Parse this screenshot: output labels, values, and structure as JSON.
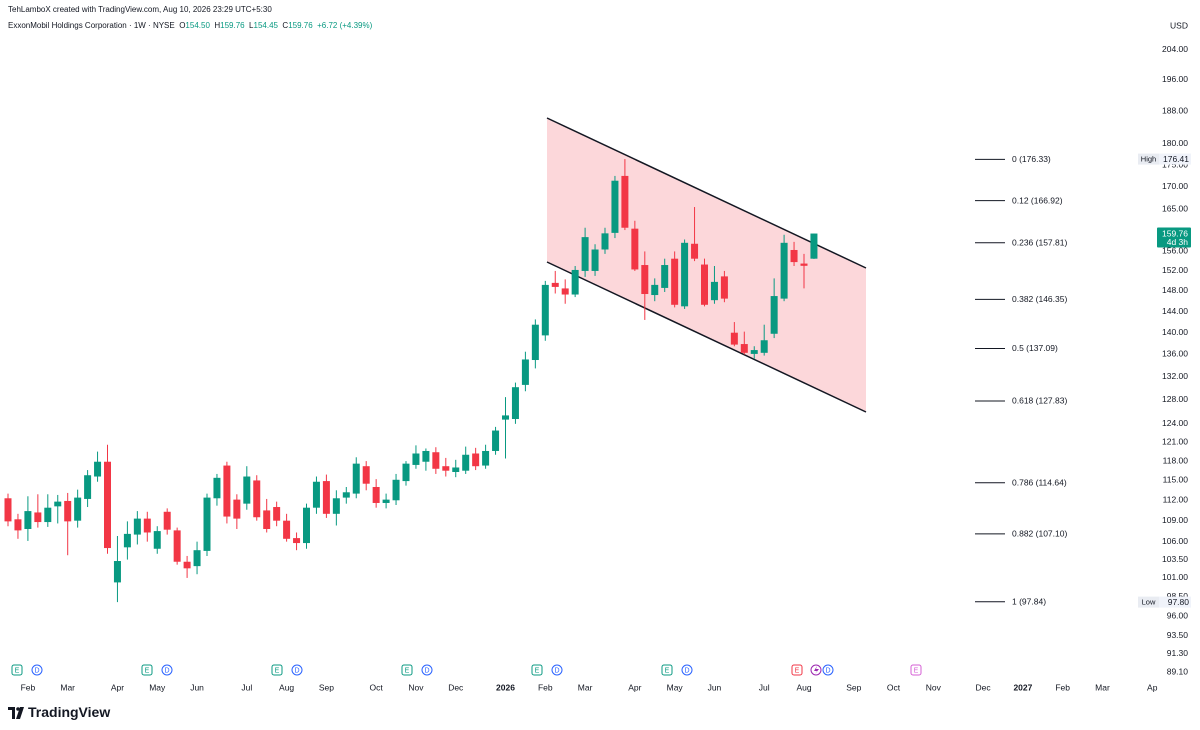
{
  "chart_data": {
    "type": "candlestick",
    "attribution": "TehLamboX created with TradingView.com, Aug 10, 2026 23:29 UTC+5:30",
    "legend": {
      "symbol": "ExxonMobil Holdings Corporation · 1W · NYSE",
      "fields": [
        [
          "O",
          "154.50"
        ],
        [
          "H",
          "159.76"
        ],
        [
          "L",
          "154.45"
        ],
        [
          "C",
          "159.76"
        ]
      ],
      "change": "+6.72 (+4.39%)"
    },
    "currency": "USD",
    "brand": "TradingView",
    "up_color": "#089981",
    "down_color": "#f23645",
    "log_scale": true,
    "grid": false,
    "categories": [
      null,
      null,
      "Feb",
      null,
      null,
      null,
      "Mar",
      null,
      null,
      null,
      null,
      "Apr",
      null,
      null,
      null,
      "May",
      null,
      null,
      null,
      "Jun",
      null,
      null,
      null,
      null,
      "Jul",
      null,
      null,
      null,
      "Aug",
      null,
      null,
      null,
      "Sep",
      null,
      null,
      null,
      null,
      "Oct",
      null,
      null,
      null,
      "Nov",
      null,
      null,
      null,
      "Dec",
      null,
      null,
      null,
      null,
      "2026",
      null,
      null,
      null,
      "Feb",
      null,
      null,
      null,
      "Mar",
      null,
      null,
      null,
      null,
      "Apr",
      null,
      null,
      null,
      "May",
      null,
      null,
      null,
      "Jun",
      null,
      null,
      null,
      null,
      "Jul",
      null,
      null,
      null,
      "Aug",
      null,
      null,
      null,
      null,
      "Sep",
      null,
      null,
      null,
      "Oct",
      null,
      null,
      null,
      "Nov",
      null,
      null,
      null,
      null,
      "Dec",
      null,
      null,
      null,
      "2027",
      null,
      null,
      null,
      "Feb",
      null,
      null,
      null,
      "Mar",
      null,
      null,
      null,
      null,
      "Ap"
    ],
    "open": [
      112.3,
      109.2,
      107.8,
      110.2,
      108.8,
      111.1,
      111.9,
      109.0,
      112.2,
      115.6,
      117.9,
      100.4,
      105.2,
      107.0,
      109.3,
      105.0,
      110.3,
      107.6,
      103.2,
      102.6,
      104.7,
      112.3,
      117.3,
      112.1,
      111.5,
      115.0,
      110.5,
      111.0,
      109.0,
      106.5,
      105.8,
      110.9,
      114.9,
      110.0,
      112.4,
      113.0,
      117.2,
      114.0,
      111.6,
      112.0,
      114.9,
      117.4,
      117.9,
      119.4,
      117.2,
      116.3,
      116.5,
      119.2,
      117.3,
      119.6,
      124.7,
      124.8,
      130.6,
      135.0,
      139.5,
      149.6,
      148.5,
      147.3,
      152.0,
      152.0,
      156.4,
      159.9,
      172.5,
      160.8,
      153.2,
      147.2,
      148.6,
      154.5,
      145.0,
      157.6,
      153.3,
      146.2,
      150.9,
      140.0,
      137.9,
      136.1,
      136.3,
      139.8,
      146.5,
      156.3,
      153.5,
      154.5,
      null,
      null,
      null,
      null,
      null,
      null,
      null,
      null,
      null,
      null,
      null,
      null,
      null,
      null,
      null,
      null,
      null,
      null,
      null,
      null,
      null,
      null,
      null,
      null,
      null,
      null,
      null,
      null,
      null,
      null,
      null,
      null,
      null,
      null
    ],
    "high": [
      113.0,
      110.0,
      112.6,
      112.9,
      112.9,
      112.8,
      113.1,
      113.6,
      116.6,
      119.5,
      120.6,
      106.8,
      108.9,
      110.4,
      110.3,
      108.2,
      110.8,
      108.0,
      104.0,
      106.0,
      113.0,
      116.0,
      117.9,
      112.9,
      117.2,
      115.8,
      112.2,
      111.8,
      110.0,
      107.3,
      111.5,
      115.6,
      115.9,
      113.5,
      114.0,
      118.6,
      118.0,
      115.2,
      113.0,
      116.0,
      118.0,
      120.5,
      120.0,
      120.2,
      118.5,
      118.2,
      120.3,
      120.1,
      120.6,
      123.5,
      128.5,
      131.0,
      136.5,
      142.5,
      150.0,
      152.0,
      150.3,
      153.0,
      161.0,
      157.5,
      161.0,
      172.5,
      176.41,
      162.5,
      156.0,
      150.5,
      154.5,
      156.0,
      158.5,
      165.5,
      154.5,
      153.0,
      152.0,
      142.0,
      140.2,
      137.5,
      141.5,
      150.5,
      159.5,
      158.0,
      155.5,
      159.76,
      null,
      null,
      null,
      null,
      null,
      null,
      null,
      null,
      null,
      null,
      null,
      null,
      null,
      null,
      null,
      null,
      null,
      null,
      null,
      null,
      null,
      null,
      null,
      null,
      null,
      null,
      null,
      null,
      null,
      null,
      null,
      null,
      null,
      null
    ],
    "low": [
      108.2,
      106.4,
      106.1,
      108.0,
      108.1,
      108.6,
      104.1,
      108.0,
      111.0,
      114.8,
      104.3,
      97.8,
      103.5,
      105.6,
      106.0,
      104.3,
      107.0,
      102.8,
      101.0,
      101.5,
      104.0,
      111.2,
      108.6,
      107.8,
      110.6,
      109.0,
      107.3,
      108.2,
      106.0,
      104.8,
      105.0,
      110.0,
      109.4,
      108.3,
      111.5,
      112.3,
      113.5,
      110.9,
      110.8,
      111.3,
      114.2,
      116.8,
      116.5,
      116.0,
      115.6,
      115.5,
      116.0,
      116.6,
      116.8,
      119.0,
      118.4,
      124.0,
      129.5,
      133.5,
      138.5,
      147.5,
      145.5,
      146.8,
      150.8,
      151.0,
      155.5,
      158.8,
      160.5,
      152.0,
      142.4,
      146.0,
      147.8,
      144.8,
      144.5,
      154.0,
      145.0,
      145.5,
      145.8,
      137.5,
      136.0,
      135.2,
      135.8,
      139.0,
      146.0,
      153.0,
      148.5,
      154.45,
      null,
      null,
      null,
      null,
      null,
      null,
      null,
      null,
      null,
      null,
      null,
      null,
      null,
      null,
      null,
      null,
      null,
      null,
      null,
      null,
      null,
      null,
      null,
      null,
      null,
      null,
      null,
      null,
      null,
      null,
      null,
      null,
      null,
      null
    ],
    "close": [
      108.9,
      107.6,
      110.4,
      108.8,
      110.9,
      111.8,
      108.9,
      112.4,
      115.8,
      117.9,
      105.1,
      103.3,
      107.1,
      109.3,
      107.3,
      107.5,
      107.7,
      103.2,
      102.3,
      104.8,
      112.4,
      115.4,
      109.6,
      109.3,
      115.6,
      109.5,
      107.8,
      109.0,
      106.4,
      105.8,
      110.9,
      114.8,
      110.0,
      112.3,
      113.2,
      117.6,
      114.5,
      111.6,
      112.1,
      115.1,
      117.6,
      119.2,
      119.6,
      116.8,
      116.5,
      117.0,
      119.0,
      117.2,
      119.6,
      122.9,
      125.4,
      130.2,
      135.1,
      141.5,
      149.2,
      148.8,
      147.3,
      152.2,
      159.0,
      156.4,
      159.8,
      171.4,
      161.0,
      152.3,
      147.4,
      149.2,
      153.2,
      145.3,
      157.8,
      154.5,
      145.3,
      149.8,
      146.5,
      137.8,
      136.3,
      136.8,
      138.6,
      147.0,
      157.8,
      153.8,
      153.04,
      159.76,
      null,
      null,
      null,
      null,
      null,
      null,
      null,
      null,
      null,
      null,
      null,
      null,
      null,
      null,
      null,
      null,
      null,
      null,
      null,
      null,
      null,
      null,
      null,
      null,
      null,
      null,
      null,
      null,
      null,
      null,
      null,
      null,
      null,
      null
    ],
    "ylim": [
      88.4,
      212.3
    ],
    "yticks": [
      {
        "value": 204,
        "label": "204.00"
      },
      {
        "value": 196,
        "label": "196.00"
      },
      {
        "value": 188,
        "label": "188.00"
      },
      {
        "value": 180,
        "label": "180.00"
      },
      {
        "value": 175,
        "label": "175.00"
      },
      {
        "value": 170,
        "label": "170.00"
      },
      {
        "value": 165,
        "label": "165.00"
      },
      {
        "value": 156,
        "label": "156.00"
      },
      {
        "value": 152,
        "label": "152.00"
      },
      {
        "value": 148,
        "label": "148.00"
      },
      {
        "value": 144,
        "label": "144.00"
      },
      {
        "value": 140,
        "label": "140.00"
      },
      {
        "value": 136,
        "label": "136.00"
      },
      {
        "value": 132,
        "label": "132.00"
      },
      {
        "value": 128,
        "label": "128.00"
      },
      {
        "value": 124,
        "label": "124.00"
      },
      {
        "value": 121,
        "label": "121.00"
      },
      {
        "value": 118,
        "label": "118.00"
      },
      {
        "value": 115,
        "label": "115.00"
      },
      {
        "value": 112,
        "label": "112.00"
      },
      {
        "value": 109,
        "label": "109.00"
      },
      {
        "value": 106,
        "label": "106.00"
      },
      {
        "value": 103.5,
        "label": "103.50"
      },
      {
        "value": 101,
        "label": "101.00"
      },
      {
        "value": 98.5,
        "label": "98.50"
      },
      {
        "value": 96,
        "label": "96.00"
      },
      {
        "value": 93.5,
        "label": "93.50"
      },
      {
        "value": 91.3,
        "label": "91.30"
      },
      {
        "value": 89.1,
        "label": "89.10"
      }
    ],
    "fib_levels": [
      {
        "value": 176.33,
        "label": "0 (176.33)"
      },
      {
        "value": 166.92,
        "label": "0.12 (166.92)"
      },
      {
        "value": 157.81,
        "label": "0.236 (157.81)"
      },
      {
        "value": 146.35,
        "label": "0.382 (146.35)"
      },
      {
        "value": 137.09,
        "label": "0.5 (137.09)"
      },
      {
        "value": 127.83,
        "label": "0.618 (127.83)"
      },
      {
        "value": 114.64,
        "label": "0.786 (114.64)"
      },
      {
        "value": 107.1,
        "label": "0.882 (107.10)"
      },
      {
        "value": 97.84,
        "label": "1 (97.84)"
      }
    ],
    "high_tag": {
      "value": 176.41,
      "label": "176.41",
      "tag": "High"
    },
    "low_tag": {
      "value": 97.8,
      "label": "97.80",
      "tag": "Low"
    },
    "last_price": {
      "value": 159.76,
      "label": "159.76",
      "countdown": "4d 3h",
      "color": "#089981"
    },
    "events": [
      "E",
      "D",
      "E",
      "D",
      "E",
      "D",
      "E",
      "D",
      "E",
      "D",
      "E",
      "D",
      "E",
      "D",
      "E"
    ]
  }
}
